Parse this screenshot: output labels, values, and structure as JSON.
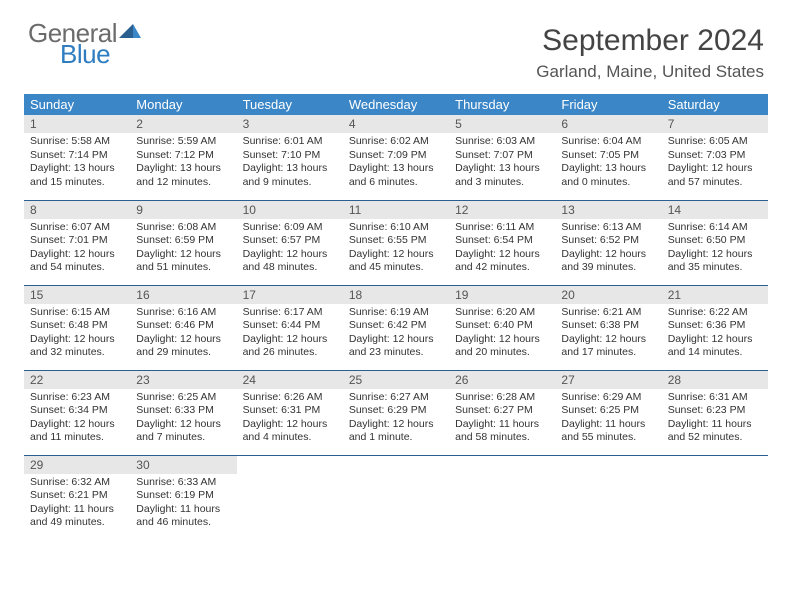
{
  "logo": {
    "word1": "General",
    "word2": "Blue"
  },
  "title": "September 2024",
  "location": "Garland, Maine, United States",
  "colors": {
    "header_bg": "#3b86c7",
    "header_text": "#ffffff",
    "daynum_bg": "#e7e7e7",
    "row_border": "#2b5f8f",
    "logo_grey": "#6b6b6b",
    "logo_blue": "#2f7dc1"
  },
  "typography": {
    "month_title_pt": 30,
    "location_pt": 17,
    "weekday_pt": 13,
    "body_pt": 10.5
  },
  "weekdays": [
    "Sunday",
    "Monday",
    "Tuesday",
    "Wednesday",
    "Thursday",
    "Friday",
    "Saturday"
  ],
  "weeks": [
    [
      {
        "day": "1",
        "sunrise": "Sunrise: 5:58 AM",
        "sunset": "Sunset: 7:14 PM",
        "daylight1": "Daylight: 13 hours",
        "daylight2": "and 15 minutes."
      },
      {
        "day": "2",
        "sunrise": "Sunrise: 5:59 AM",
        "sunset": "Sunset: 7:12 PM",
        "daylight1": "Daylight: 13 hours",
        "daylight2": "and 12 minutes."
      },
      {
        "day": "3",
        "sunrise": "Sunrise: 6:01 AM",
        "sunset": "Sunset: 7:10 PM",
        "daylight1": "Daylight: 13 hours",
        "daylight2": "and 9 minutes."
      },
      {
        "day": "4",
        "sunrise": "Sunrise: 6:02 AM",
        "sunset": "Sunset: 7:09 PM",
        "daylight1": "Daylight: 13 hours",
        "daylight2": "and 6 minutes."
      },
      {
        "day": "5",
        "sunrise": "Sunrise: 6:03 AM",
        "sunset": "Sunset: 7:07 PM",
        "daylight1": "Daylight: 13 hours",
        "daylight2": "and 3 minutes."
      },
      {
        "day": "6",
        "sunrise": "Sunrise: 6:04 AM",
        "sunset": "Sunset: 7:05 PM",
        "daylight1": "Daylight: 13 hours",
        "daylight2": "and 0 minutes."
      },
      {
        "day": "7",
        "sunrise": "Sunrise: 6:05 AM",
        "sunset": "Sunset: 7:03 PM",
        "daylight1": "Daylight: 12 hours",
        "daylight2": "and 57 minutes."
      }
    ],
    [
      {
        "day": "8",
        "sunrise": "Sunrise: 6:07 AM",
        "sunset": "Sunset: 7:01 PM",
        "daylight1": "Daylight: 12 hours",
        "daylight2": "and 54 minutes."
      },
      {
        "day": "9",
        "sunrise": "Sunrise: 6:08 AM",
        "sunset": "Sunset: 6:59 PM",
        "daylight1": "Daylight: 12 hours",
        "daylight2": "and 51 minutes."
      },
      {
        "day": "10",
        "sunrise": "Sunrise: 6:09 AM",
        "sunset": "Sunset: 6:57 PM",
        "daylight1": "Daylight: 12 hours",
        "daylight2": "and 48 minutes."
      },
      {
        "day": "11",
        "sunrise": "Sunrise: 6:10 AM",
        "sunset": "Sunset: 6:55 PM",
        "daylight1": "Daylight: 12 hours",
        "daylight2": "and 45 minutes."
      },
      {
        "day": "12",
        "sunrise": "Sunrise: 6:11 AM",
        "sunset": "Sunset: 6:54 PM",
        "daylight1": "Daylight: 12 hours",
        "daylight2": "and 42 minutes."
      },
      {
        "day": "13",
        "sunrise": "Sunrise: 6:13 AM",
        "sunset": "Sunset: 6:52 PM",
        "daylight1": "Daylight: 12 hours",
        "daylight2": "and 39 minutes."
      },
      {
        "day": "14",
        "sunrise": "Sunrise: 6:14 AM",
        "sunset": "Sunset: 6:50 PM",
        "daylight1": "Daylight: 12 hours",
        "daylight2": "and 35 minutes."
      }
    ],
    [
      {
        "day": "15",
        "sunrise": "Sunrise: 6:15 AM",
        "sunset": "Sunset: 6:48 PM",
        "daylight1": "Daylight: 12 hours",
        "daylight2": "and 32 minutes."
      },
      {
        "day": "16",
        "sunrise": "Sunrise: 6:16 AM",
        "sunset": "Sunset: 6:46 PM",
        "daylight1": "Daylight: 12 hours",
        "daylight2": "and 29 minutes."
      },
      {
        "day": "17",
        "sunrise": "Sunrise: 6:17 AM",
        "sunset": "Sunset: 6:44 PM",
        "daylight1": "Daylight: 12 hours",
        "daylight2": "and 26 minutes."
      },
      {
        "day": "18",
        "sunrise": "Sunrise: 6:19 AM",
        "sunset": "Sunset: 6:42 PM",
        "daylight1": "Daylight: 12 hours",
        "daylight2": "and 23 minutes."
      },
      {
        "day": "19",
        "sunrise": "Sunrise: 6:20 AM",
        "sunset": "Sunset: 6:40 PM",
        "daylight1": "Daylight: 12 hours",
        "daylight2": "and 20 minutes."
      },
      {
        "day": "20",
        "sunrise": "Sunrise: 6:21 AM",
        "sunset": "Sunset: 6:38 PM",
        "daylight1": "Daylight: 12 hours",
        "daylight2": "and 17 minutes."
      },
      {
        "day": "21",
        "sunrise": "Sunrise: 6:22 AM",
        "sunset": "Sunset: 6:36 PM",
        "daylight1": "Daylight: 12 hours",
        "daylight2": "and 14 minutes."
      }
    ],
    [
      {
        "day": "22",
        "sunrise": "Sunrise: 6:23 AM",
        "sunset": "Sunset: 6:34 PM",
        "daylight1": "Daylight: 12 hours",
        "daylight2": "and 11 minutes."
      },
      {
        "day": "23",
        "sunrise": "Sunrise: 6:25 AM",
        "sunset": "Sunset: 6:33 PM",
        "daylight1": "Daylight: 12 hours",
        "daylight2": "and 7 minutes."
      },
      {
        "day": "24",
        "sunrise": "Sunrise: 6:26 AM",
        "sunset": "Sunset: 6:31 PM",
        "daylight1": "Daylight: 12 hours",
        "daylight2": "and 4 minutes."
      },
      {
        "day": "25",
        "sunrise": "Sunrise: 6:27 AM",
        "sunset": "Sunset: 6:29 PM",
        "daylight1": "Daylight: 12 hours",
        "daylight2": "and 1 minute."
      },
      {
        "day": "26",
        "sunrise": "Sunrise: 6:28 AM",
        "sunset": "Sunset: 6:27 PM",
        "daylight1": "Daylight: 11 hours",
        "daylight2": "and 58 minutes."
      },
      {
        "day": "27",
        "sunrise": "Sunrise: 6:29 AM",
        "sunset": "Sunset: 6:25 PM",
        "daylight1": "Daylight: 11 hours",
        "daylight2": "and 55 minutes."
      },
      {
        "day": "28",
        "sunrise": "Sunrise: 6:31 AM",
        "sunset": "Sunset: 6:23 PM",
        "daylight1": "Daylight: 11 hours",
        "daylight2": "and 52 minutes."
      }
    ],
    [
      {
        "day": "29",
        "sunrise": "Sunrise: 6:32 AM",
        "sunset": "Sunset: 6:21 PM",
        "daylight1": "Daylight: 11 hours",
        "daylight2": "and 49 minutes."
      },
      {
        "day": "30",
        "sunrise": "Sunrise: 6:33 AM",
        "sunset": "Sunset: 6:19 PM",
        "daylight1": "Daylight: 11 hours",
        "daylight2": "and 46 minutes."
      },
      null,
      null,
      null,
      null,
      null
    ]
  ]
}
